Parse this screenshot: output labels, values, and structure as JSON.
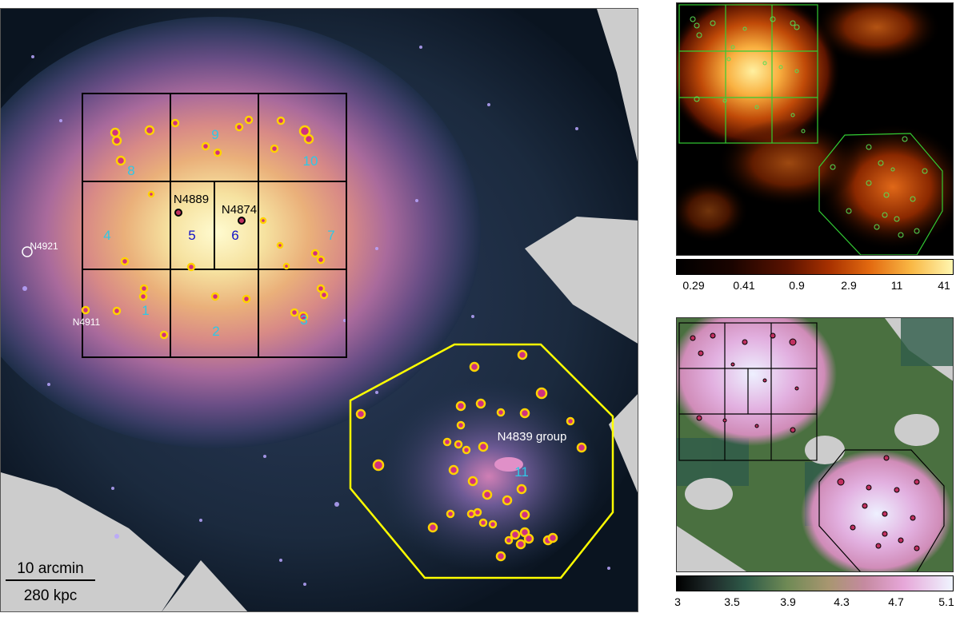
{
  "main_image": {
    "region_numbers": [
      "1",
      "2",
      "3",
      "4",
      "5",
      "6",
      "7",
      "8",
      "9",
      "10",
      "11"
    ],
    "galaxy_labels": {
      "n4889": "N4889",
      "n4874": "N4874",
      "n4921": "N4921",
      "n4911": "N4911",
      "n4839": "N4839 group"
    },
    "scalebar": {
      "top_label": "10 arcmin",
      "bottom_label": "280 kpc"
    },
    "colors": {
      "grid": "#000000",
      "polygon": "#ffff00",
      "region_label": "#2ec8e6",
      "center_label": "#1010c8"
    }
  },
  "colorbar_top": {
    "ticks": [
      "0.29",
      "0.41",
      "0.9",
      "2.9",
      "11",
      "41"
    ]
  },
  "colorbar_bottom": {
    "ticks": [
      "3",
      "3.5",
      "3.9",
      "4.3",
      "4.7",
      "5.1"
    ]
  }
}
